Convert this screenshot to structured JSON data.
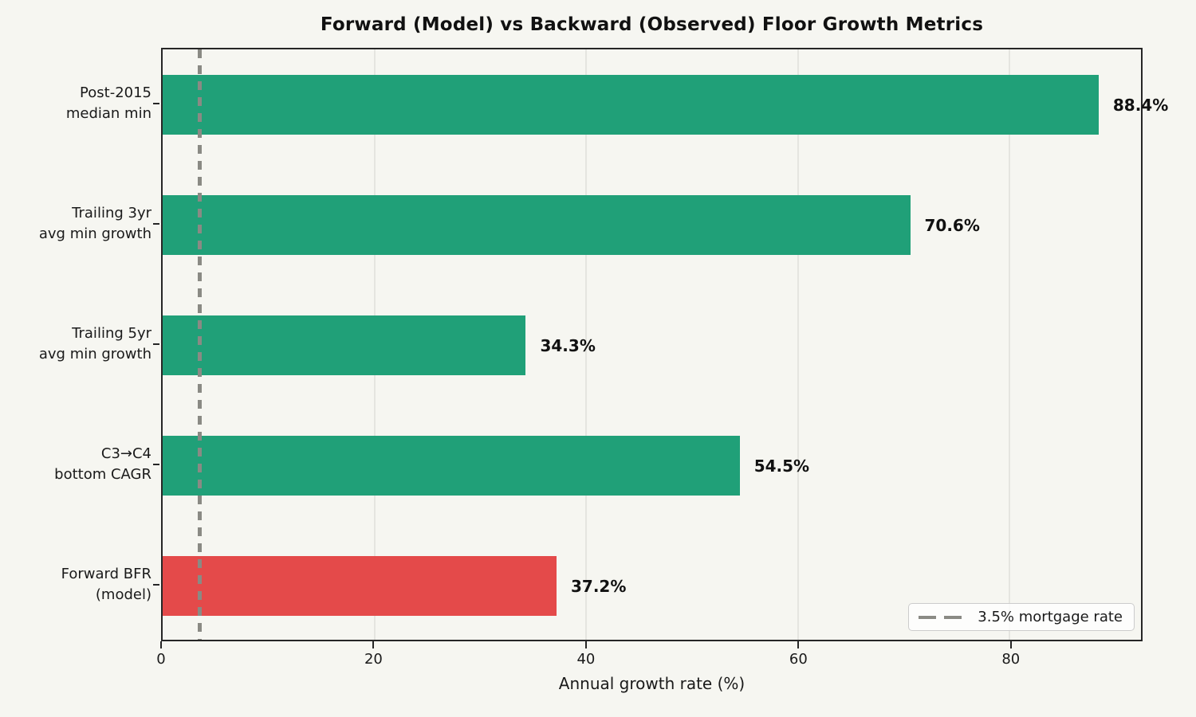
{
  "figure": {
    "background": "#f6f6f1"
  },
  "chart_data": {
    "type": "bar",
    "orientation": "horizontal",
    "title": "Forward (Model) vs Backward (Observed) Floor Growth Metrics",
    "xlabel": "Annual growth rate (%)",
    "xlim": [
      0,
      92.4
    ],
    "xticks": [
      0,
      20,
      40,
      60,
      80
    ],
    "grid": "vertical light gridlines at xticks",
    "categories": [
      "Post-2015 median min",
      "Trailing 3yr avg min growth",
      "Trailing 5yr avg min growth",
      "C3→C4 bottom CAGR",
      "Forward BFR (model)"
    ],
    "values": [
      88.4,
      70.6,
      34.3,
      54.5,
      37.2
    ],
    "bars": [
      {
        "category": "Post-2015 median min",
        "label_lines": [
          "Post-2015",
          "median min"
        ],
        "value": 88.4,
        "value_label": "88.4%",
        "color": "#20a078"
      },
      {
        "category": "Trailing 3yr avg min growth",
        "label_lines": [
          "Trailing 3yr",
          "avg min growth"
        ],
        "value": 70.6,
        "value_label": "70.6%",
        "color": "#20a078"
      },
      {
        "category": "Trailing 5yr avg min growth",
        "label_lines": [
          "Trailing 5yr",
          "avg min growth"
        ],
        "value": 34.3,
        "value_label": "34.3%",
        "color": "#20a078"
      },
      {
        "category": "C3→C4 bottom CAGR",
        "label_lines": [
          "C3→C4",
          "bottom CAGR"
        ],
        "value": 54.5,
        "value_label": "54.5%",
        "color": "#20a078"
      },
      {
        "category": "Forward BFR (model)",
        "label_lines": [
          "Forward BFR",
          "(model)"
        ],
        "value": 37.2,
        "value_label": "37.2%",
        "color": "#e44a4a"
      }
    ],
    "reference_line": {
      "value": 3.5,
      "color": "#8a8a84",
      "style": "dashed",
      "legend_label": "3.5% mortgage rate"
    },
    "legend_position": "lower right",
    "colors": {
      "observed_green": "#20a078",
      "model_red": "#e44a4a",
      "spine": "#262626",
      "gridline": "#e5e5e0",
      "background": "#f6f6f1"
    }
  }
}
